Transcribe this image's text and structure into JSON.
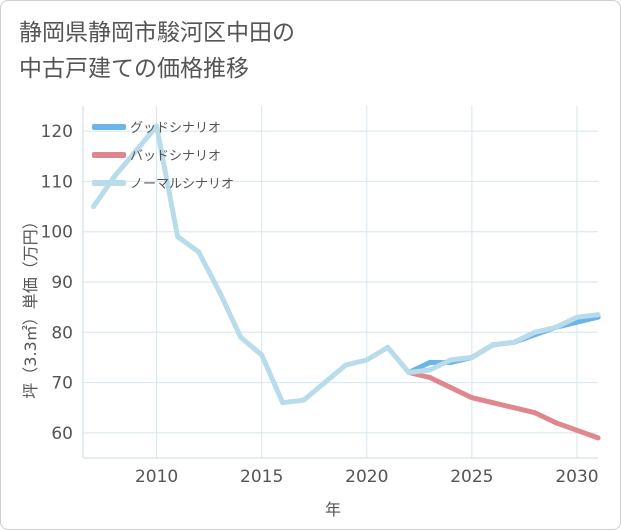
{
  "title": "静岡県静岡市駿河区中田の\n中古戸建ての価格推移",
  "chart_data": {
    "type": "line",
    "xlabel": "年",
    "ylabel": "坪（3.3㎡）単価（万円）",
    "xlim": [
      2006.5,
      2031
    ],
    "ylim": [
      55,
      125
    ],
    "x_ticks": [
      2010,
      2015,
      2020,
      2025,
      2030
    ],
    "y_ticks": [
      60,
      70,
      80,
      90,
      100,
      110,
      120
    ],
    "grid": true,
    "legend_position": "top-left",
    "series": [
      {
        "name": "グッドシナリオ",
        "color": "#6cb4ea",
        "x": [
          2022,
          2023,
          2024,
          2025,
          2026,
          2027,
          2028,
          2029,
          2030,
          2031
        ],
        "y": [
          72,
          74,
          74,
          75,
          77.5,
          78,
          79.5,
          81,
          82,
          83
        ]
      },
      {
        "name": "バッドシナリオ",
        "color": "#e0868f",
        "x": [
          2022,
          2023,
          2024,
          2025,
          2026,
          2027,
          2028,
          2029,
          2030,
          2031
        ],
        "y": [
          72,
          71,
          69,
          67,
          66,
          65,
          64,
          62,
          60.5,
          59
        ]
      },
      {
        "name": "ノーマルシナリオ",
        "color": "#b8dcea",
        "x": [
          2007,
          2008,
          2009,
          2010,
          2011,
          2012,
          2013,
          2014,
          2015,
          2016,
          2017,
          2018,
          2019,
          2020,
          2021,
          2022,
          2023,
          2024,
          2025,
          2026,
          2027,
          2028,
          2029,
          2030,
          2031
        ],
        "y": [
          105,
          111,
          116,
          121,
          99,
          96,
          88,
          79,
          75.5,
          66,
          66.5,
          70,
          73.5,
          74.5,
          77,
          72,
          72.5,
          74.5,
          75,
          77.5,
          78,
          80,
          81,
          83,
          83.5
        ]
      }
    ]
  }
}
